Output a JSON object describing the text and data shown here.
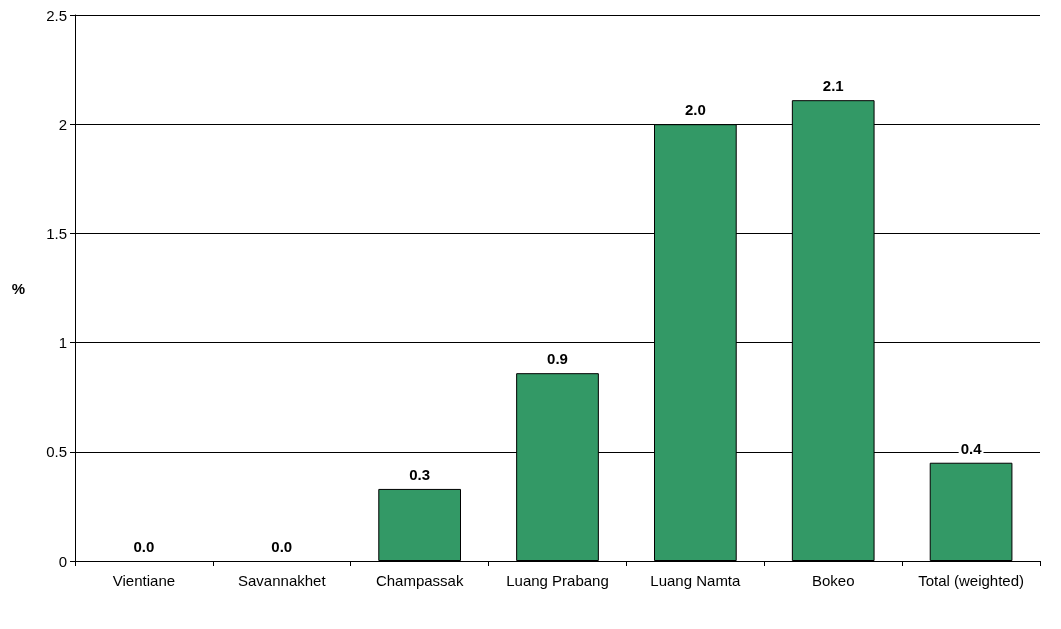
{
  "chart_data": {
    "type": "bar",
    "ylabel": "%",
    "categories": [
      "Vientiane",
      "Savannakhet",
      "Champassak",
      "Luang Prabang",
      "Luang Namta",
      "Bokeo",
      "Total (weighted)"
    ],
    "values": [
      0,
      0,
      0.33,
      0.86,
      2.0,
      2.11,
      0.45
    ],
    "value_labels": [
      "0.0",
      "0.0",
      "0.3",
      "0.9",
      "2.0",
      "2.1",
      "0.4"
    ],
    "color": "#339966",
    "ylim": [
      0,
      2.5
    ],
    "yticks": [
      0,
      0.5,
      1,
      1.5,
      2,
      2.5
    ],
    "grid": "y"
  }
}
